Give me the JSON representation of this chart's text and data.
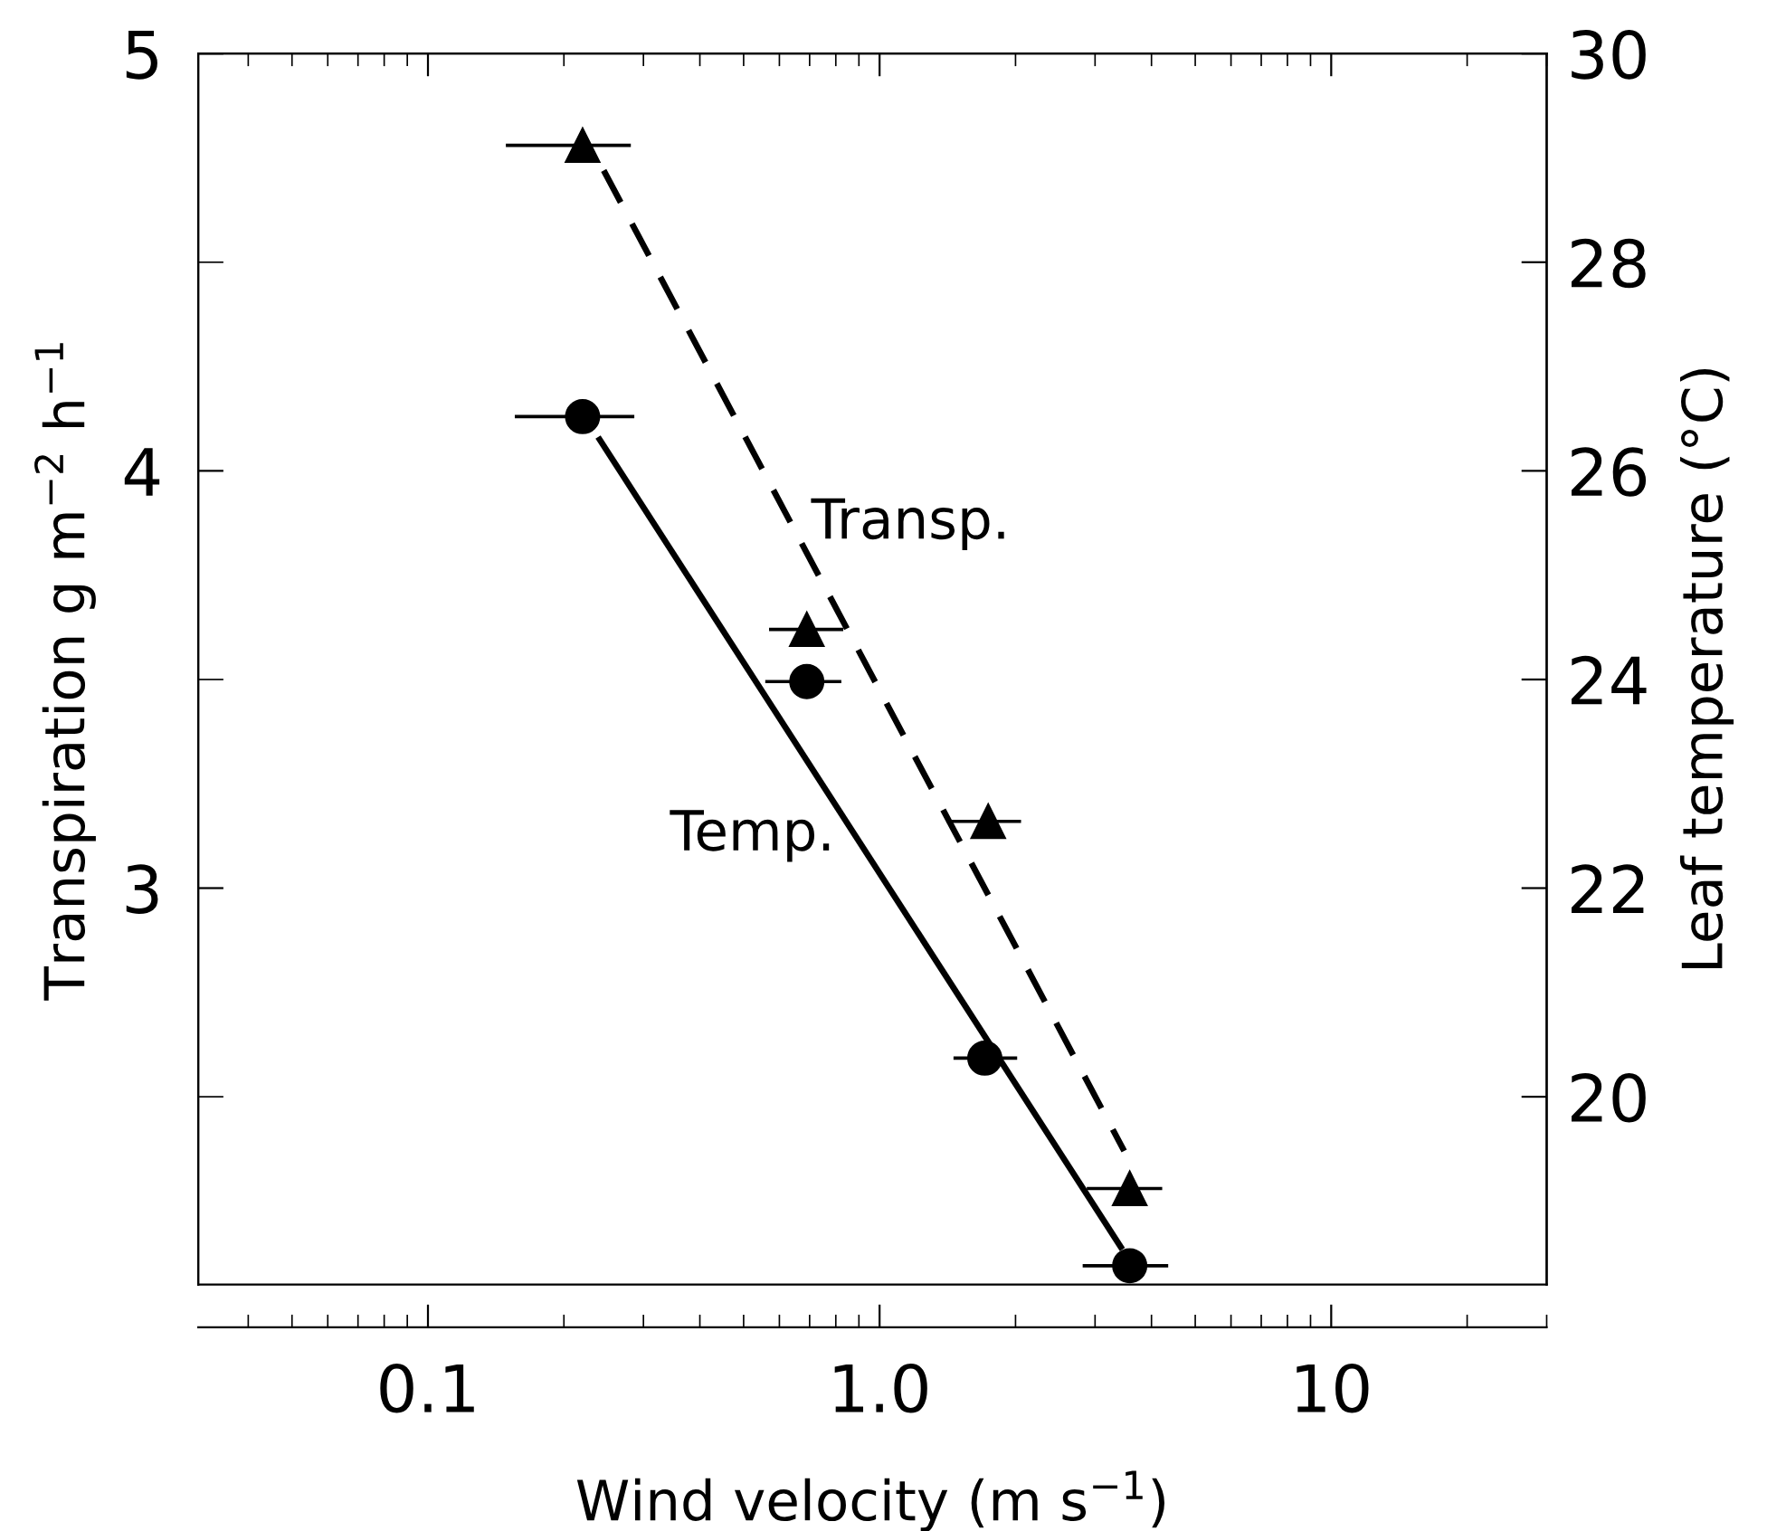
{
  "chart_data": {
    "type": "scatter",
    "xlabel": "Wind velocity (m s$^{−1}$)",
    "ylabel": "Transpiration g m$^{−2}$ h$^{−1}$",
    "y2label": "Leaf temperature (°C)",
    "log": "x",
    "xlim": [
      0.031,
      30
    ],
    "xticks": [
      {
        "value": 0.1,
        "label": "0.1"
      },
      {
        "value": 1,
        "label": "1.0"
      },
      10
    ],
    "ylim": [
      2.05,
      5
    ],
    "yticks": [
      {
        "value": 2.5,
        "label": null
      },
      3,
      {
        "value": 3.5,
        "label": null
      },
      4,
      {
        "value": 4.5,
        "label": null
      },
      5
    ],
    "y2lim": [
      18.2,
      30
    ],
    "y2ticks": [
      20,
      22,
      24,
      26,
      28,
      30
    ],
    "grid": false,
    "series": [
      {
        "axis": "y",
        "marker": "triangle",
        "color": "#000000",
        "x": [
          0.22,
          0.69,
          1.74,
          3.58
        ],
        "values": [
          4.78,
          3.62,
          3.16,
          2.28
        ],
        "xerrors": [
          [
            0.15,
            0.279
          ],
          [
            0.574,
            0.824
          ],
          [
            1.42,
            2.04
          ],
          [
            2.9,
            4.19
          ]
        ]
      },
      {
        "axis": "y2",
        "marker": "circle",
        "color": "#000000",
        "x": [
          0.22,
          0.69,
          1.71,
          3.58
        ],
        "values": [
          26.52,
          23.98,
          20.37,
          18.38
        ],
        "xerrors": [
          [
            0.157,
            0.284
          ],
          [
            0.563,
            0.816
          ],
          [
            1.47,
            2.0
          ],
          [
            2.84,
            4.32
          ]
        ]
      },
      {
        "type": "line",
        "name": "Transp.",
        "axis": "y",
        "line_style": "dashed",
        "color": "#000000",
        "x": [
          0.245,
          3.48
        ],
        "values": [
          4.72,
          2.37
        ]
      },
      {
        "type": "line",
        "name": "Temp.",
        "axis": "y2",
        "line_style": "solid",
        "color": "#000000",
        "x": [
          0.24,
          3.42
        ],
        "values": [
          26.3,
          18.56
        ]
      }
    ]
  }
}
